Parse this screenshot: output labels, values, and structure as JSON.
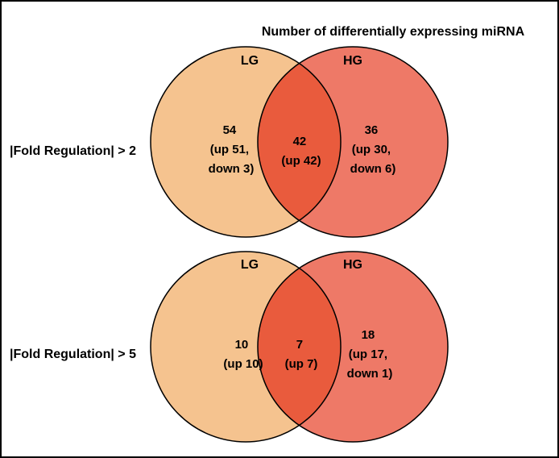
{
  "title": "Number of differentially expressing miRNA",
  "colors": {
    "lg": "#F5C38F",
    "hg": "#EE7967",
    "overlap": "#E95B3D",
    "outline": "#000000"
  },
  "panels": [
    {
      "row_label": "|Fold Regulation| > 2",
      "left_set": "LG",
      "right_set": "HG",
      "left_only": [
        "54",
        "(up 51,",
        "down 3)"
      ],
      "overlap": [
        "42",
        "(up 42)"
      ],
      "right_only": [
        "36",
        "(up 30,",
        "down 6)"
      ]
    },
    {
      "row_label": "|Fold Regulation| > 5",
      "left_set": "LG",
      "right_set": "HG",
      "left_only": [
        "10",
        "(up 10)"
      ],
      "overlap": [
        "7",
        "(up 7)"
      ],
      "right_only": [
        "18",
        "(up 17,",
        "down 1)"
      ]
    }
  ]
}
